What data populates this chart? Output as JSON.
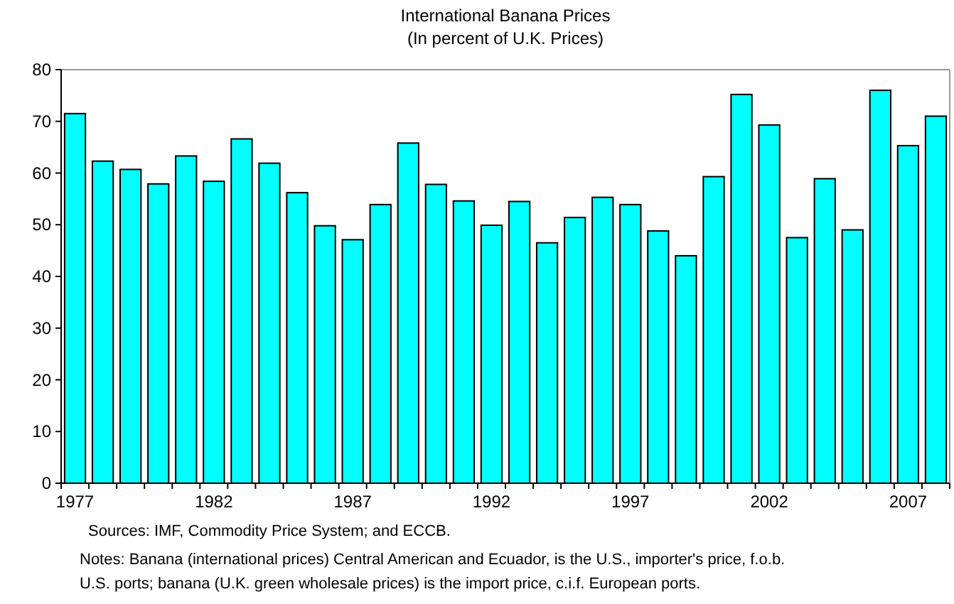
{
  "chart_data": {
    "type": "bar",
    "title": "International Banana Prices",
    "subtitle": "(In percent of U.K. Prices)",
    "categories": [
      "1977",
      null,
      null,
      null,
      null,
      "1982",
      null,
      null,
      null,
      null,
      "1987",
      null,
      null,
      null,
      null,
      "1992",
      null,
      null,
      null,
      null,
      "1997",
      null,
      null,
      null,
      null,
      "2002",
      null,
      null,
      null,
      null,
      "2007",
      null
    ],
    "values": [
      71.5,
      62.3,
      60.7,
      57.9,
      63.3,
      58.4,
      66.6,
      61.9,
      56.2,
      49.8,
      47.1,
      53.9,
      65.8,
      57.8,
      54.6,
      49.9,
      54.5,
      46.5,
      51.4,
      55.3,
      53.9,
      48.8,
      44.0,
      59.3,
      75.2,
      69.3,
      47.5,
      58.9,
      49.0,
      76.0,
      65.3,
      71.0
    ],
    "color": "#00ffff",
    "ylim": [
      0,
      80
    ],
    "yticks": [
      0,
      10,
      20,
      30,
      40,
      50,
      60,
      70,
      80
    ],
    "grid": false,
    "annotations": [
      "Sources: IMF, Commodity Price System; and ECCB.",
      "Notes: Banana (international prices) Central American and Ecuador, is the U.S., importer's price, f.o.b.",
      "U.S. ports; banana (U.K. green wholesale prices) is the import price, c.i.f. European ports."
    ]
  }
}
